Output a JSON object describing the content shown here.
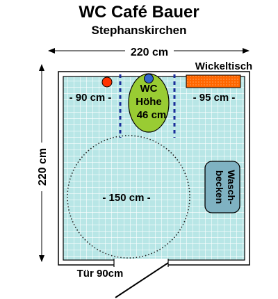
{
  "header": {
    "title": "WC Café Bauer",
    "subtitle": "Stephanskirchen"
  },
  "dimensions": {
    "width_label": "220 cm",
    "height_label": "220 cm",
    "left_gap_label": "- 90 cm -",
    "right_gap_label": "- 95 cm -",
    "turning_circle_label": "- 150 cm -",
    "door_label": "Tür 90cm"
  },
  "fixtures": {
    "changing_table_label": "Wickeltisch",
    "toilet_lines": [
      "WC",
      "Höhe",
      "46 cm"
    ],
    "sink_lines": [
      "Wasch-",
      "becken"
    ]
  },
  "colors": {
    "floor_tile": "#b8e6e6",
    "tile_grid": "#ffffff",
    "wall": "#ffffff",
    "toilet": "#99cc33",
    "changing_table": "#ff6600",
    "sink": "#7fb2c2",
    "red_marker": "#ff3300",
    "blue_marker": "#3366cc",
    "grab_bar": "#1a2e99"
  }
}
